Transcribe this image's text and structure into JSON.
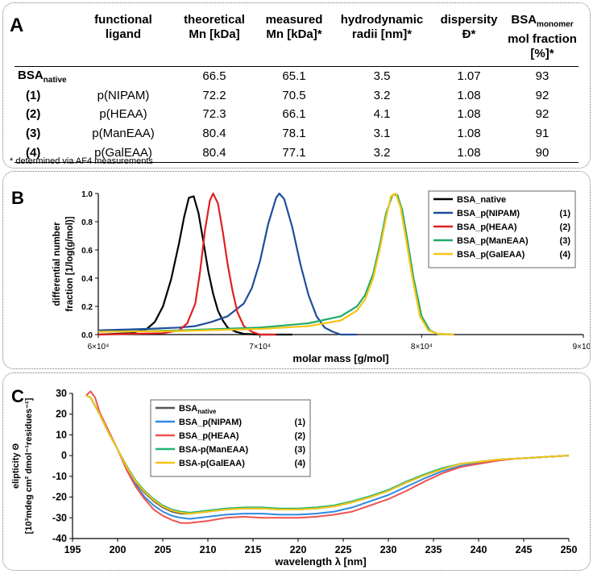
{
  "table": {
    "label": "A",
    "headers": [
      {
        "l1": "",
        "l2": ""
      },
      {
        "l1": "functional",
        "l2": "ligand"
      },
      {
        "l1": "theoretical",
        "l2": "Mn [kDa]"
      },
      {
        "l1": "measured",
        "l2": "Mn [kDa]*"
      },
      {
        "l1": "hydrodynamic",
        "l2": "radii [nm]*"
      },
      {
        "l1": "dispersity",
        "l2": "Đ*"
      },
      {
        "l1": "BSA",
        "l1sub": "monomer",
        "l2": "mol fraction [%]*"
      }
    ],
    "rows": [
      {
        "label": "BSA",
        "label_sub": "native",
        "ligand": "",
        "theo": "66.5",
        "meas": "65.1",
        "radii": "3.5",
        "disp": "1.07",
        "frac": "93"
      },
      {
        "label": "(1)",
        "ligand": "p(NIPAM)",
        "theo": "72.2",
        "meas": "70.5",
        "radii": "3.2",
        "disp": "1.08",
        "frac": "92"
      },
      {
        "label": "(2)",
        "ligand": "p(HEAA)",
        "theo": "72.3",
        "meas": "66.1",
        "radii": "4.1",
        "disp": "1.08",
        "frac": "92"
      },
      {
        "label": "(3)",
        "ligand": "p(ManEAA)",
        "theo": "80.4",
        "meas": "78.1",
        "radii": "3.1",
        "disp": "1.08",
        "frac": "91"
      },
      {
        "label": "(4)",
        "ligand": "p(GalEAA)",
        "theo": "80.4",
        "meas": "77.1",
        "radii": "3.2",
        "disp": "1.08",
        "frac": "90"
      }
    ],
    "footnote": "* determined via AF4 measurements"
  },
  "chart_data": [
    {
      "label": "B",
      "type": "line",
      "xlabel": "molar mass [g/mol]",
      "ylabel_line1": "differential number",
      "ylabel_line2": "fraction [1/log(g/mol)]",
      "xlim": [
        60000,
        90000
      ],
      "ylim": [
        0,
        1.0
      ],
      "xticks": [
        60000,
        70000,
        80000,
        90000
      ],
      "xtick_labels": [
        "6×10⁴",
        "7×10⁴",
        "8×10⁴",
        "9×10⁴"
      ],
      "yticks": [
        0,
        0.2,
        0.4,
        0.6,
        0.8,
        1.0
      ],
      "ytick_labels": [
        "0.0",
        "0.2",
        "0.4",
        "0.6",
        "0.8",
        "1.0"
      ],
      "series": [
        {
          "name": "BSA_native",
          "tag": "",
          "color": "#000000",
          "x": [
            60000,
            62000,
            63000,
            63500,
            64000,
            64500,
            65000,
            65300,
            65600,
            65900,
            66200,
            66500,
            66800,
            67100,
            67400,
            67700,
            68000,
            68500,
            69000,
            70000,
            72000
          ],
          "y": [
            0.0,
            0.01,
            0.04,
            0.09,
            0.2,
            0.39,
            0.65,
            0.83,
            0.97,
            0.98,
            0.86,
            0.66,
            0.45,
            0.29,
            0.17,
            0.1,
            0.05,
            0.02,
            0.005,
            0.0,
            0.0
          ]
        },
        {
          "name": "BSA_p(NIPAM)",
          "tag": "(1)",
          "color": "#1f4e9c",
          "x": [
            60000,
            63000,
            65000,
            66000,
            67000,
            68000,
            69000,
            69500,
            70000,
            70500,
            71000,
            71200,
            71500,
            72000,
            72500,
            73000,
            73500,
            74000,
            74500,
            75000,
            76000
          ],
          "y": [
            0.03,
            0.04,
            0.05,
            0.06,
            0.09,
            0.13,
            0.22,
            0.33,
            0.52,
            0.78,
            0.97,
            1.0,
            0.96,
            0.76,
            0.5,
            0.28,
            0.13,
            0.05,
            0.02,
            0.0,
            0.0
          ]
        },
        {
          "name": "BSA_p(HEAA)",
          "tag": "(2)",
          "color": "#e02020",
          "x": [
            60000,
            64000,
            65000,
            65500,
            66000,
            66300,
            66600,
            66900,
            67100,
            67400,
            67700,
            68000,
            68300,
            68600,
            69000,
            69500,
            70000,
            71000
          ],
          "y": [
            0.0,
            0.01,
            0.03,
            0.08,
            0.22,
            0.45,
            0.74,
            0.95,
            1.0,
            0.93,
            0.73,
            0.5,
            0.31,
            0.16,
            0.06,
            0.02,
            0.0,
            0.0
          ]
        },
        {
          "name": "BSA_p(ManEAA)",
          "tag": "(3)",
          "color": "#1faa6a",
          "x": [
            60000,
            65000,
            70000,
            73000,
            75000,
            76000,
            76500,
            77000,
            77400,
            77800,
            78200,
            78500,
            78800,
            79100,
            79500,
            80000,
            80500,
            81000,
            82000
          ],
          "y": [
            0.02,
            0.03,
            0.05,
            0.08,
            0.13,
            0.2,
            0.28,
            0.43,
            0.63,
            0.86,
            0.99,
            0.99,
            0.88,
            0.68,
            0.4,
            0.13,
            0.03,
            0.005,
            0.0
          ]
        },
        {
          "name": "BSA_p(GalEAA)",
          "tag": "(4)",
          "color": "#f5c518",
          "x": [
            60000,
            65000,
            70000,
            73000,
            75000,
            76000,
            76500,
            77000,
            77400,
            77800,
            78100,
            78400,
            78700,
            79000,
            79400,
            79900,
            80400,
            81000,
            82000
          ],
          "y": [
            0.02,
            0.025,
            0.04,
            0.06,
            0.1,
            0.17,
            0.25,
            0.4,
            0.6,
            0.83,
            0.98,
            1.0,
            0.9,
            0.7,
            0.42,
            0.13,
            0.03,
            0.005,
            0.0
          ]
        }
      ]
    },
    {
      "label": "C",
      "type": "line",
      "xlabel": "wavelength λ [nm]",
      "ylabel_line1": "elipticity Θ",
      "ylabel_line2": "[10³mdeg cm² dmol⁻¹residues⁻¹]",
      "xlim": [
        195,
        250
      ],
      "ylim": [
        -40,
        30
      ],
      "xticks": [
        195,
        200,
        205,
        210,
        215,
        220,
        225,
        230,
        235,
        240,
        245,
        250
      ],
      "yticks": [
        -40,
        -30,
        -20,
        -10,
        0,
        10,
        20,
        30
      ],
      "series": [
        {
          "name": "BSA",
          "name_sub": "native",
          "tag": "",
          "color": "#555555",
          "x": [
            196.5,
            197,
            198,
            199,
            200,
            201,
            202,
            203,
            204,
            205,
            206,
            207,
            208,
            209,
            210,
            212,
            214,
            216,
            218,
            220,
            222,
            224,
            226,
            228,
            230,
            232,
            234,
            236,
            238,
            240,
            242,
            244,
            246,
            248,
            250
          ],
          "y": [
            29,
            28,
            20,
            11,
            3,
            -6,
            -13,
            -18,
            -22,
            -25,
            -27,
            -28,
            -28,
            -27.5,
            -27,
            -26,
            -25.5,
            -25.5,
            -26,
            -26,
            -25.5,
            -24.5,
            -22.5,
            -20,
            -17,
            -13,
            -9.5,
            -6.5,
            -4,
            -3,
            -2,
            -1.5,
            -1,
            -0.5,
            0
          ]
        },
        {
          "name": "BSA_p(NIPAM)",
          "tag": "(1)",
          "color": "#2f8ae0",
          "x": [
            196.5,
            197,
            198,
            199,
            200,
            201,
            202,
            203,
            204,
            205,
            206,
            207,
            208,
            209,
            210,
            212,
            214,
            216,
            218,
            220,
            222,
            224,
            226,
            228,
            230,
            232,
            234,
            236,
            238,
            240,
            242,
            244,
            246,
            248,
            250
          ],
          "y": [
            29,
            28,
            20,
            11,
            3,
            -6,
            -14,
            -20,
            -24,
            -27,
            -29,
            -30,
            -30.5,
            -30,
            -29.5,
            -28.5,
            -28,
            -28,
            -28.5,
            -28.5,
            -28,
            -27,
            -25,
            -22,
            -19,
            -15,
            -11,
            -7.5,
            -5,
            -3.5,
            -2,
            -1.5,
            -1,
            -0.5,
            0
          ]
        },
        {
          "name": "BSA_p(HEAA)",
          "tag": "(2)",
          "color": "#ef5350",
          "x": [
            196.5,
            197,
            197.5,
            198,
            199,
            200,
            201,
            202,
            203,
            204,
            205,
            206,
            207,
            208,
            209,
            210,
            212,
            214,
            216,
            218,
            220,
            222,
            224,
            226,
            228,
            230,
            232,
            234,
            236,
            238,
            240,
            242,
            244,
            246,
            248,
            250
          ],
          "y": [
            29,
            31,
            28,
            21,
            12,
            3,
            -7,
            -15,
            -21,
            -26,
            -29,
            -31,
            -32.5,
            -32.5,
            -32,
            -31.5,
            -30,
            -29.5,
            -30,
            -30,
            -30,
            -29.5,
            -28.5,
            -27,
            -24,
            -21,
            -17,
            -12.5,
            -8.5,
            -5.5,
            -4,
            -2.5,
            -1.5,
            -1,
            -0.5,
            0
          ]
        },
        {
          "name": "BSA-p(ManEAA)",
          "tag": "(3)",
          "color": "#22b573",
          "x": [
            196.5,
            197,
            198,
            199,
            200,
            201,
            202,
            203,
            204,
            205,
            206,
            207,
            208,
            209,
            210,
            212,
            214,
            216,
            218,
            220,
            222,
            224,
            226,
            228,
            230,
            232,
            234,
            236,
            238,
            240,
            242,
            244,
            246,
            248,
            250
          ],
          "y": [
            29,
            28,
            20,
            11,
            3,
            -5,
            -12,
            -17,
            -21,
            -24,
            -26,
            -27,
            -27.5,
            -27,
            -26.5,
            -25.5,
            -25,
            -25,
            -25.5,
            -25.5,
            -25,
            -24,
            -22,
            -19.5,
            -16.5,
            -12.5,
            -9,
            -6,
            -4,
            -3,
            -2,
            -1.5,
            -1,
            -0.5,
            0
          ]
        },
        {
          "name": "BSA-p(GalEAA)",
          "tag": "(4)",
          "color": "#f5c518",
          "x": [
            196.5,
            197,
            198,
            199,
            200,
            201,
            202,
            203,
            204,
            205,
            206,
            207,
            208,
            209,
            210,
            212,
            214,
            216,
            218,
            220,
            222,
            224,
            226,
            228,
            230,
            232,
            234,
            236,
            238,
            240,
            242,
            244,
            246,
            248,
            250
          ],
          "y": [
            29,
            28,
            20,
            11,
            3,
            -5.5,
            -12.5,
            -17.5,
            -21.5,
            -24.5,
            -26.5,
            -27.5,
            -28,
            -27.5,
            -27,
            -26,
            -25.5,
            -25.5,
            -26,
            -26,
            -25.5,
            -24.5,
            -22.5,
            -20,
            -17,
            -13,
            -9.5,
            -6.5,
            -4,
            -3,
            -2,
            -1.5,
            -1,
            -0.5,
            0
          ]
        }
      ]
    }
  ]
}
